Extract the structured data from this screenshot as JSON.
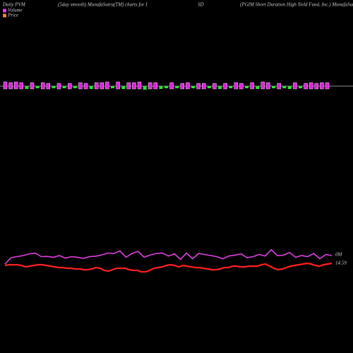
{
  "chart_data": {
    "type": "pvm",
    "title_parts": [
      "Daily PVM",
      "(5day smooth) MunafaSutra(TM) charts for I",
      "SD",
      "(PGIM Short Duration High Yield Fund, Inc.) MunafaSutr"
    ],
    "legend": [
      {
        "name": "Volume",
        "color": "#e040e0"
      },
      {
        "name": "Price",
        "color": "#f08040"
      }
    ],
    "bars": {
      "up_color": "#e020e0",
      "down_color": "#30e030",
      "ylim": [
        -20,
        20
      ],
      "values": [
        6,
        5,
        6,
        5,
        -4,
        5,
        -3,
        5,
        4,
        -3,
        4,
        -3,
        4,
        -3,
        5,
        4,
        -4,
        5,
        5,
        6,
        -3,
        6,
        -4,
        5,
        5,
        6,
        -5,
        5,
        5,
        -4,
        -3,
        5,
        -3,
        4,
        5,
        -3,
        4,
        4,
        -3,
        4,
        -4,
        4,
        -3,
        5,
        4,
        -3,
        5,
        -4,
        6,
        5,
        -3,
        4,
        -3,
        -4,
        5,
        -3,
        4,
        5,
        4,
        5,
        5
      ]
    },
    "volume_line": {
      "color": "#e040e0",
      "ylim": [
        0,
        1
      ],
      "values": [
        0.2,
        0.5,
        0.55,
        0.6,
        0.68,
        0.72,
        0.55,
        0.56,
        0.52,
        0.6,
        0.48,
        0.55,
        0.52,
        0.47,
        0.55,
        0.57,
        0.63,
        0.72,
        0.7,
        0.82,
        0.52,
        0.7,
        0.8,
        0.52,
        0.63,
        0.7,
        0.72,
        0.58,
        0.68,
        0.42,
        0.72,
        0.45,
        0.7,
        0.65,
        0.6,
        0.55,
        0.45,
        0.58,
        0.62,
        0.68,
        0.5,
        0.55,
        0.65,
        0.58,
        0.88,
        0.6,
        0.62,
        0.75,
        0.52,
        0.6,
        0.55,
        0.7,
        0.45,
        0.65,
        0.6
      ],
      "end_label": "0M"
    },
    "price_line": {
      "color": "#ff2020",
      "ylim": [
        14.3,
        14.8
      ],
      "values": [
        14.56,
        14.57,
        14.57,
        14.57,
        14.56,
        14.54,
        14.55,
        14.56,
        14.57,
        14.57,
        14.56,
        14.55,
        14.54,
        14.53,
        14.53,
        14.52,
        14.52,
        14.51,
        14.51,
        14.5,
        14.5,
        14.51,
        14.53,
        14.52,
        14.49,
        14.48,
        14.5,
        14.52,
        14.52,
        14.52,
        14.5,
        14.49,
        14.49,
        14.47,
        14.47,
        14.49,
        14.52,
        14.53,
        14.54,
        14.56,
        14.57,
        14.56,
        14.54,
        14.56,
        14.55,
        14.54,
        14.53,
        14.53,
        14.52,
        14.51,
        14.5,
        14.5,
        14.51,
        14.53,
        14.53,
        14.55,
        14.55,
        14.54,
        14.54,
        14.55,
        14.55,
        14.55,
        14.57,
        14.58,
        14.55,
        14.52,
        14.5,
        14.51,
        14.53,
        14.55,
        14.56,
        14.57,
        14.58,
        14.59,
        14.58,
        14.56,
        14.55,
        14.57,
        14.58,
        14.59
      ],
      "end_label": "14.59"
    }
  }
}
